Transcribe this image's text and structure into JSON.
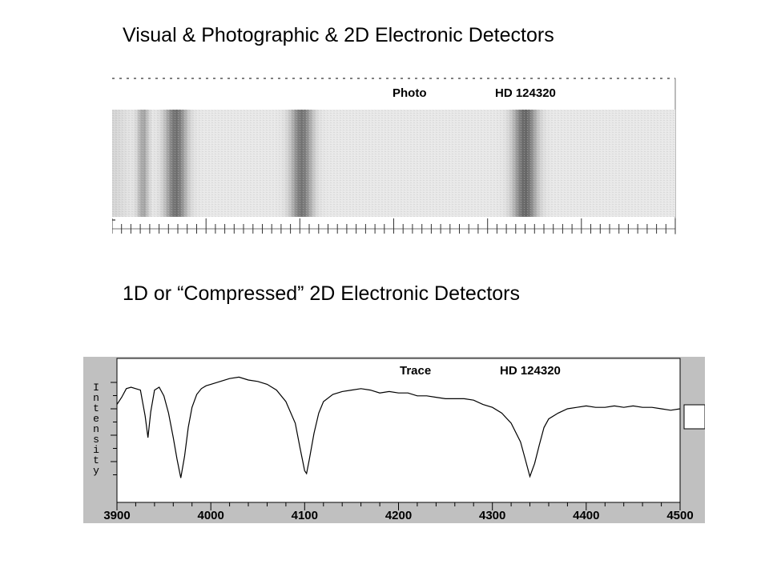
{
  "headings": {
    "top": "Visual & Photographic & 2D Electronic Detectors",
    "middle": "1D or “Compressed” 2D Electronic Detectors"
  },
  "photo_panel": {
    "mode_label": "Photo",
    "star_label": "HD 124320"
  },
  "trace_panel": {
    "mode_label": "Trace",
    "star_label": "HD 124320"
  },
  "colors": {
    "panel_bg": "#c0c0c0",
    "plot_bg": "#ffffff",
    "line": "#000000",
    "spectrum_light": "#e6e6e6",
    "spectrum_dark": "#4a4a4a"
  },
  "chart_data": [
    {
      "type": "heatmap",
      "description_of_axis": "wavelength",
      "xlim": [
        3900,
        4500
      ],
      "absorption_lines": [
        {
          "x": 3933,
          "depth": 0.45,
          "width": 6
        },
        {
          "x": 3968,
          "depth": 0.75,
          "width": 12
        },
        {
          "x": 4102,
          "depth": 0.72,
          "width": 12
        },
        {
          "x": 4340,
          "depth": 0.8,
          "width": 13
        }
      ]
    },
    {
      "type": "line",
      "title": "",
      "xlabel": "",
      "ylabel": "Intensity",
      "xlim": [
        3900,
        4500
      ],
      "ylim": [
        0,
        1
      ],
      "x_ticks": [
        3900,
        4000,
        4100,
        4200,
        4300,
        4400,
        4500
      ],
      "series": [
        {
          "x": [
            3900,
            3905,
            3910,
            3915,
            3920,
            3925,
            3930,
            3933,
            3936,
            3940,
            3945,
            3950,
            3955,
            3960,
            3964,
            3968,
            3972,
            3976,
            3980,
            3985,
            3990,
            3995,
            4000,
            4010,
            4020,
            4030,
            4040,
            4050,
            4060,
            4070,
            4080,
            4090,
            4095,
            4100,
            4102,
            4105,
            4110,
            4115,
            4120,
            4130,
            4140,
            4150,
            4160,
            4170,
            4180,
            4190,
            4200,
            4210,
            4220,
            4230,
            4240,
            4250,
            4260,
            4270,
            4280,
            4290,
            4300,
            4310,
            4320,
            4330,
            4335,
            4340,
            4345,
            4350,
            4355,
            4360,
            4370,
            4380,
            4390,
            4400,
            4410,
            4420,
            4430,
            4440,
            4450,
            4460,
            4470,
            4480,
            4490,
            4500
          ],
          "y": [
            0.68,
            0.73,
            0.79,
            0.8,
            0.79,
            0.78,
            0.6,
            0.45,
            0.63,
            0.78,
            0.8,
            0.74,
            0.62,
            0.45,
            0.3,
            0.17,
            0.32,
            0.52,
            0.66,
            0.75,
            0.79,
            0.81,
            0.82,
            0.84,
            0.86,
            0.87,
            0.85,
            0.84,
            0.82,
            0.78,
            0.7,
            0.55,
            0.38,
            0.22,
            0.2,
            0.3,
            0.48,
            0.62,
            0.7,
            0.75,
            0.77,
            0.78,
            0.79,
            0.78,
            0.76,
            0.77,
            0.76,
            0.76,
            0.74,
            0.74,
            0.73,
            0.72,
            0.72,
            0.72,
            0.71,
            0.68,
            0.66,
            0.62,
            0.55,
            0.42,
            0.3,
            0.18,
            0.27,
            0.4,
            0.52,
            0.58,
            0.62,
            0.65,
            0.66,
            0.67,
            0.66,
            0.66,
            0.67,
            0.66,
            0.67,
            0.66,
            0.66,
            0.65,
            0.64,
            0.65
          ]
        }
      ]
    }
  ]
}
